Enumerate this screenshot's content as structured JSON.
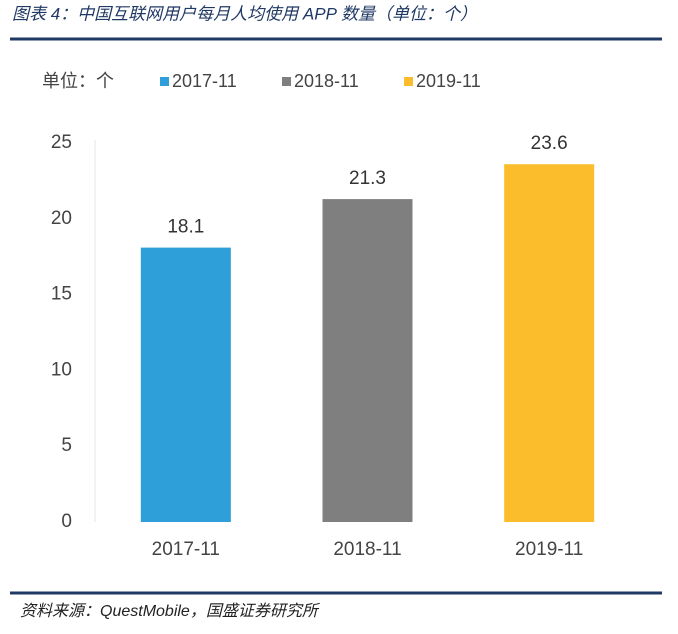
{
  "chart_data": {
    "type": "bar",
    "title": "图表 4：中国互联网用户每月人均使用 APP 数量（单位：个）",
    "unit_label": "单位：个",
    "categories": [
      "2017-11",
      "2018-11",
      "2019-11"
    ],
    "values": [
      18.1,
      21.3,
      23.6
    ],
    "colors": [
      "#2e9fd8",
      "#7f7f7f",
      "#fbbd2c"
    ],
    "ylim": [
      0,
      25
    ],
    "yticks": [
      0,
      5,
      10,
      15,
      20,
      25
    ],
    "grid": false,
    "source": "资料来源：QuestMobile，国盛证券研究所"
  }
}
